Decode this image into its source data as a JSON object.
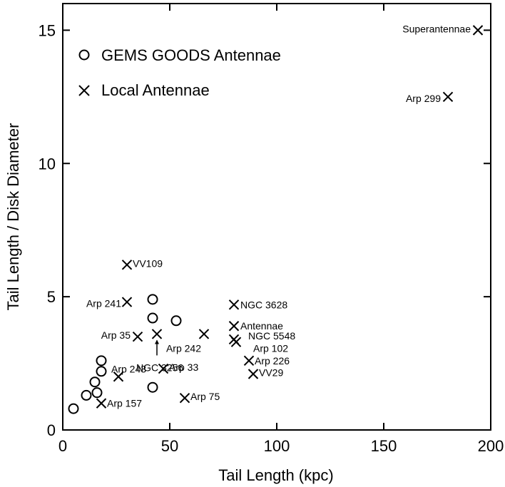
{
  "chart_data": {
    "type": "scatter",
    "xlabel": "Tail Length (kpc)",
    "ylabel": "Tail Length / Disk Diameter",
    "xlim": [
      0,
      200
    ],
    "ylim": [
      0,
      16
    ],
    "xticks": [
      0,
      50,
      100,
      150,
      200
    ],
    "yticks": [
      0,
      5,
      10,
      15
    ],
    "grid": false,
    "legend_position": "top-left",
    "series": [
      {
        "name": "GEMS GOODS Antennae",
        "marker": "circle",
        "points": [
          {
            "x": 5,
            "y": 0.8
          },
          {
            "x": 11,
            "y": 1.3
          },
          {
            "x": 15,
            "y": 1.8
          },
          {
            "x": 16,
            "y": 1.4
          },
          {
            "x": 18,
            "y": 2.2
          },
          {
            "x": 18,
            "y": 2.6
          },
          {
            "x": 42,
            "y": 1.6
          },
          {
            "x": 42,
            "y": 4.2
          },
          {
            "x": 42,
            "y": 4.9
          },
          {
            "x": 53,
            "y": 4.1
          }
        ]
      },
      {
        "name": "Local Antennae",
        "marker": "x",
        "points": [
          {
            "x": 194,
            "y": 15.0,
            "label": "Superantennae"
          },
          {
            "x": 180,
            "y": 12.5,
            "label": "Arp 299"
          },
          {
            "x": 30,
            "y": 6.2,
            "label": "VV109"
          },
          {
            "x": 30,
            "y": 4.8,
            "label": "Arp 241"
          },
          {
            "x": 80,
            "y": 4.7,
            "label": "NGC 3628"
          },
          {
            "x": 80,
            "y": 3.9,
            "label": "Antennae"
          },
          {
            "x": 35,
            "y": 3.5,
            "label": "Arp 35"
          },
          {
            "x": 44,
            "y": 3.6,
            "label": "NGC 3256"
          },
          {
            "x": 66,
            "y": 3.6,
            "label": "Arp 242"
          },
          {
            "x": 80,
            "y": 3.4,
            "label": "NGC 5548"
          },
          {
            "x": 81,
            "y": 3.3,
            "label": "Arp 102"
          },
          {
            "x": 87,
            "y": 2.6,
            "label": "Arp 226"
          },
          {
            "x": 89,
            "y": 2.1,
            "label": "VV29"
          },
          {
            "x": 26,
            "y": 2.0,
            "label": "Arp 243"
          },
          {
            "x": 47,
            "y": 2.3,
            "label": "Arp 33"
          },
          {
            "x": 18,
            "y": 1.0,
            "label": "Arp 157"
          },
          {
            "x": 57,
            "y": 1.2,
            "label": "Arp 75"
          }
        ]
      }
    ]
  }
}
